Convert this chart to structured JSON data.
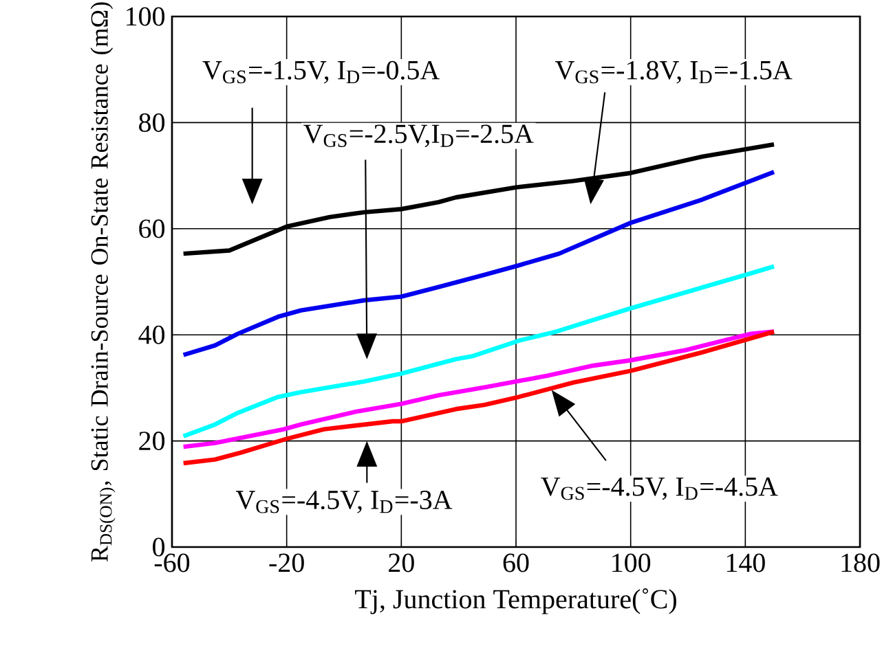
{
  "chart_data": {
    "type": "line",
    "xlabel": "Tj, Junction Temperature(˚C)",
    "ylabel": "R$_{DS(ON)}$, Static Drain-Source On-State Resistance (mΩ)",
    "xlim": [
      -60,
      180
    ],
    "ylim": [
      0,
      100
    ],
    "xticks": [
      -60,
      -20,
      20,
      60,
      100,
      140,
      180
    ],
    "yticks": [
      0,
      20,
      40,
      60,
      80,
      100
    ],
    "grid": true,
    "marker": "none",
    "line_style": "solid",
    "series": [
      {
        "color": "#000000",
        "x": [
          -56,
          -40,
          -20,
          -5,
          7,
          20,
          33,
          39,
          60,
          80,
          100,
          125,
          150
        ],
        "values": [
          55.3,
          55.9,
          60.4,
          62.2,
          63.1,
          63.7,
          65,
          65.9,
          67.8,
          69,
          70.5,
          73.6,
          75.9
        ]
      },
      {
        "color": "#0000ee",
        "x": [
          -56,
          -45,
          -37,
          -23,
          -15,
          7,
          20,
          33,
          49,
          61,
          75,
          100,
          125,
          150
        ],
        "values": [
          36.2,
          38,
          40.2,
          43.4,
          44.6,
          46.5,
          47.2,
          49,
          51.3,
          53.1,
          55.3,
          61.1,
          65.5,
          70.7
        ]
      },
      {
        "color": "#00ffff",
        "x": [
          -56,
          -45,
          -37,
          -23,
          -15,
          7,
          20,
          39,
          45,
          61,
          74,
          100,
          142,
          150
        ],
        "values": [
          20.9,
          23.1,
          25.3,
          28.3,
          29.2,
          31.2,
          32.7,
          35.4,
          36,
          38.9,
          40.6,
          45,
          51.6,
          52.9
        ]
      },
      {
        "color": "#ff00ff",
        "x": [
          -56,
          -45,
          -21,
          -15,
          4,
          20,
          33,
          49,
          71,
          87,
          100,
          119,
          142,
          150
        ],
        "values": [
          18.9,
          19.6,
          22.2,
          23.1,
          25.5,
          27,
          28.6,
          30.1,
          32.3,
          34.2,
          35.2,
          37.1,
          40.2,
          40.6
        ]
      },
      {
        "color": "#ff0000",
        "x": [
          -56,
          -45,
          -36,
          -20,
          -7,
          4,
          17,
          20,
          39,
          49,
          61,
          80,
          100,
          125,
          150
        ],
        "values": [
          15.8,
          16.5,
          17.8,
          20.4,
          22.2,
          22.9,
          23.7,
          23.7,
          26,
          26.8,
          28.3,
          31,
          33.2,
          36.7,
          40.6
        ]
      }
    ],
    "annotations": [
      "V$_{GS}$=-1.5V, I$_{D}$=-0.5A",
      "V$_{GS}$=-2.5V,I$_{D}$=-2.5A",
      {
        "text": "V$_{GS}$=-1.8V, I$_{D}$=-1.5A",
        "x": 87,
        "y": 69.5
      },
      "V$_{GS}$=-4.5V, I$_{D}$=-3A",
      "V$_{GS}$=-4.5V, I$_{D}$=-4.5A"
    ]
  }
}
